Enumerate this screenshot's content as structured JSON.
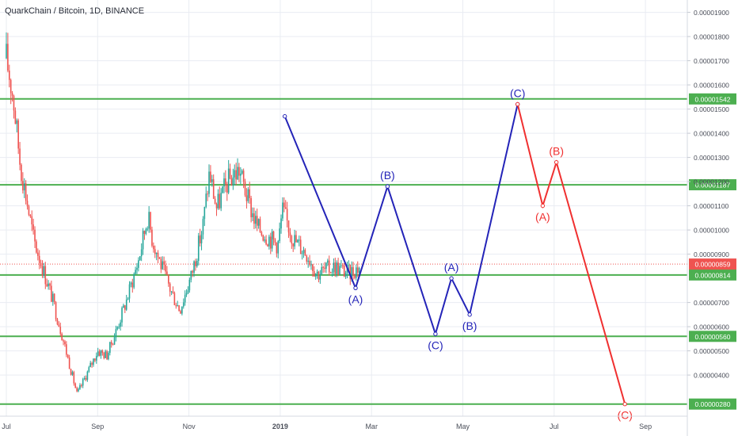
{
  "chart_title": "QuarkChain / Bitcoin, 1D, BINANCE",
  "chart_data": {
    "type": "candlestick",
    "symbol": "QuarkChain / Bitcoin",
    "interval": "1D",
    "exchange": "BINANCE",
    "x_axis": {
      "ticks": [
        "Jul",
        "Sep",
        "Nov",
        "2019",
        "Mar",
        "May",
        "Jul",
        "Sep"
      ],
      "tick_months": [
        0,
        2,
        4,
        6,
        8,
        10,
        12,
        14
      ]
    },
    "y_axis": {
      "position": "right",
      "ylim": [
        2.2e-06,
        1.97e-05
      ],
      "tick_labels": [
        "0.00001900",
        "0.00001800",
        "0.00001700",
        "0.00001600",
        "0.00001500",
        "0.00001400",
        "0.00001300",
        "0.00001200",
        "0.00001100",
        "0.00001000",
        "0.00000900",
        "0.00000700",
        "0.00000600",
        "0.00000500",
        "0.00000400"
      ],
      "tick_values": [
        1.9e-05,
        1.8e-05,
        1.7e-05,
        1.6e-05,
        1.5e-05,
        1.4e-05,
        1.3e-05,
        1.2e-05,
        1.1e-05,
        1e-05,
        9e-06,
        7e-06,
        6e-06,
        5e-06,
        4e-06
      ]
    },
    "horizontal_levels": [
      {
        "label": "0.00001542",
        "value": 1.542e-05,
        "color": "#4caf50"
      },
      {
        "label": "0.00001187",
        "value": 1.187e-05,
        "color": "#4caf50"
      },
      {
        "label": "0.00000814",
        "value": 8.14e-06,
        "color": "#4caf50"
      },
      {
        "label": "0.00000560",
        "value": 5.6e-06,
        "color": "#4caf50"
      },
      {
        "label": "0.00000280",
        "value": 2.8e-06,
        "color": "#4caf50"
      }
    ],
    "current_price": {
      "label": "0.00000859",
      "value": 8.59e-06,
      "color": "#ef5350"
    },
    "price_path": [
      [
        0.0,
        1.71e-05
      ],
      [
        0.15,
        1.55e-05
      ],
      [
        0.3,
        1.28e-05
      ],
      [
        0.45,
        1.12e-05
      ],
      [
        0.6,
        9.6e-06
      ],
      [
        0.8,
        8.4e-06
      ],
      [
        1.0,
        7.2e-06
      ],
      [
        1.2,
        5.8e-06
      ],
      [
        1.4,
        4.3e-06
      ],
      [
        1.55,
        3.2e-06
      ],
      [
        1.75,
        4e-06
      ],
      [
        2.0,
        5e-06
      ],
      [
        2.2,
        4.8e-06
      ],
      [
        2.4,
        5.8e-06
      ],
      [
        2.65,
        7.2e-06
      ],
      [
        2.9,
        8.8e-06
      ],
      [
        3.1,
        1.06e-05
      ],
      [
        3.2,
        9.6e-06
      ],
      [
        3.4,
        8.5e-06
      ],
      [
        3.6,
        7.5e-06
      ],
      [
        3.8,
        6.7e-06
      ],
      [
        4.05,
        8.1e-06
      ],
      [
        4.3,
        1.01e-05
      ],
      [
        4.45,
        1.24e-05
      ],
      [
        4.6,
        1.09e-05
      ],
      [
        4.85,
        1.2e-05
      ],
      [
        5.1,
        1.25e-05
      ],
      [
        5.3,
        1.12e-05
      ],
      [
        5.5,
        1.01e-05
      ],
      [
        5.75,
        9.7e-06
      ],
      [
        5.95,
        9.4e-06
      ],
      [
        6.05,
        1.08e-05
      ],
      [
        6.3,
        9.6e-06
      ],
      [
        6.6,
        9e-06
      ],
      [
        6.8,
        8.2e-06
      ],
      [
        7.2,
        8.5e-06
      ],
      [
        7.5,
        8.2e-06
      ],
      [
        7.75,
        8.5e-06
      ]
    ],
    "wave_paths": [
      {
        "color": "#2424b8",
        "points": [
          [
            6.1,
            1.47e-05
          ],
          [
            7.65,
            7.6e-06
          ],
          [
            8.35,
            1.18e-05
          ],
          [
            9.4,
            5.7e-06
          ],
          [
            9.75,
            8e-06
          ],
          [
            10.15,
            6.5e-06
          ],
          [
            11.2,
            1.52e-05
          ]
        ]
      },
      {
        "color": "#f03030",
        "points": [
          [
            11.2,
            1.52e-05
          ],
          [
            11.75,
            1.1e-05
          ],
          [
            12.05,
            1.28e-05
          ],
          [
            13.55,
            2.8e-06
          ]
        ]
      }
    ],
    "wave_labels": [
      {
        "text": "(A)",
        "x": 7.65,
        "y": 7.6e-06,
        "pos": "below",
        "color": "#2424b8"
      },
      {
        "text": "(B)",
        "x": 8.35,
        "y": 1.18e-05,
        "pos": "above",
        "color": "#2424b8"
      },
      {
        "text": "(C)",
        "x": 9.4,
        "y": 5.7e-06,
        "pos": "below",
        "color": "#2424b8"
      },
      {
        "text": "(A)",
        "x": 9.75,
        "y": 8e-06,
        "pos": "above",
        "color": "#2424b8"
      },
      {
        "text": "(B)",
        "x": 10.15,
        "y": 6.5e-06,
        "pos": "below",
        "color": "#2424b8"
      },
      {
        "text": "(C)",
        "x": 11.2,
        "y": 1.52e-05,
        "pos": "above",
        "color": "#2424b8"
      },
      {
        "text": "(A)",
        "x": 11.75,
        "y": 1.1e-05,
        "pos": "below",
        "color": "#f03030"
      },
      {
        "text": "(B)",
        "x": 12.05,
        "y": 1.28e-05,
        "pos": "above",
        "color": "#f03030"
      },
      {
        "text": "(C)",
        "x": 13.55,
        "y": 2.8e-06,
        "pos": "below",
        "color": "#f03030"
      }
    ],
    "colors": {
      "up": "#26a69a",
      "down": "#ef5350",
      "grid": "#e9ecf2",
      "axis_text": "#4a4e59"
    },
    "grid": true
  }
}
